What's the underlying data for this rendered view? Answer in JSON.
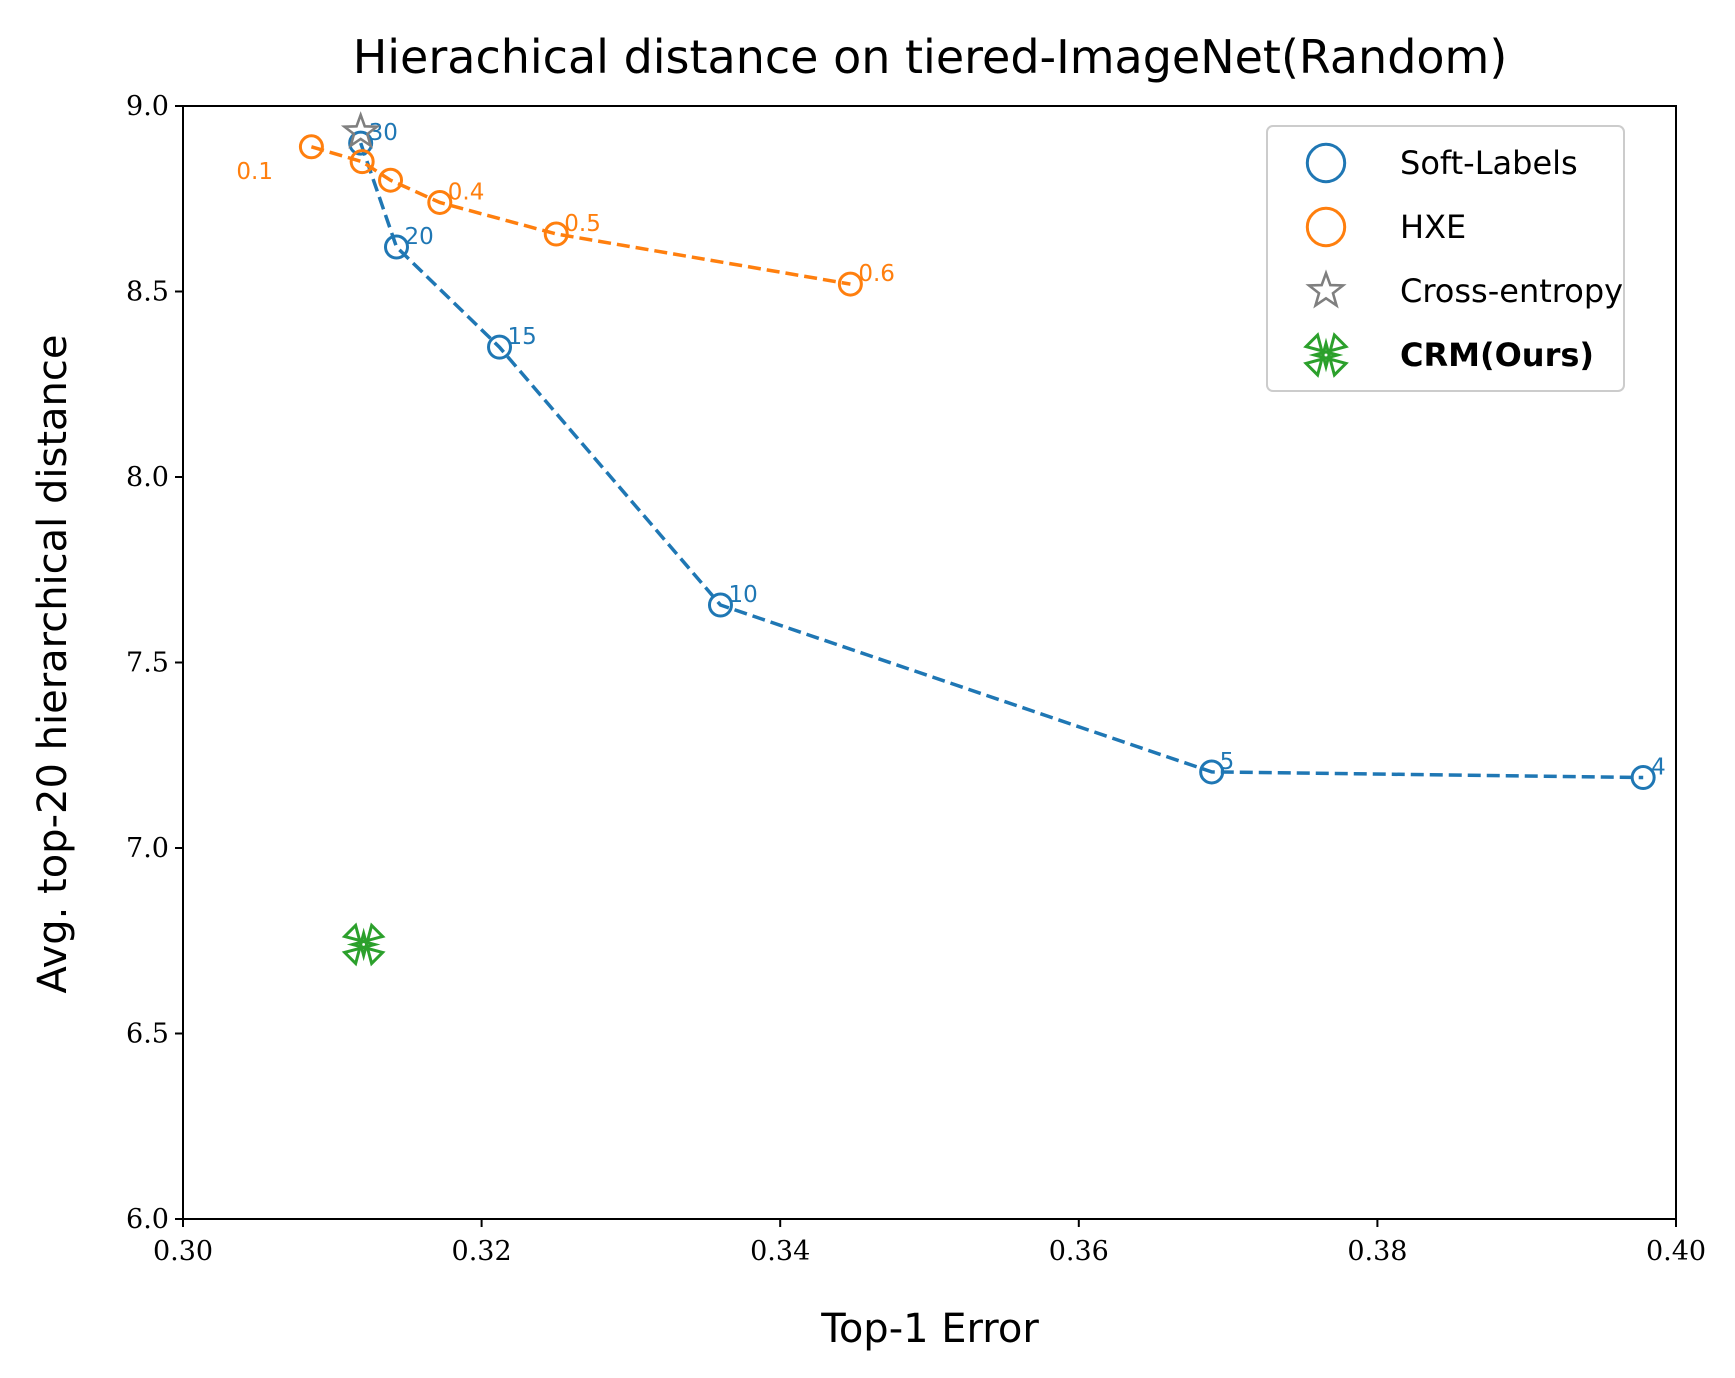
{
  "chart_data": {
    "type": "scatter",
    "title": "Hierachical distance on tiered-ImageNet(Random)",
    "xlabel": "Top-1 Error",
    "ylabel": "Avg. top-20 hierarchical distance",
    "xlim": [
      0.3,
      0.4
    ],
    "ylim": [
      6.0,
      9.0
    ],
    "xticks": [
      "0.30",
      "0.32",
      "0.34",
      "0.36",
      "0.38",
      "0.40"
    ],
    "yticks": [
      "6.0",
      "6.5",
      "7.0",
      "7.5",
      "8.0",
      "8.5",
      "9.0"
    ],
    "grid": false,
    "legend_position": "top-right",
    "series": [
      {
        "name": "Cross-entropy",
        "marker": "star",
        "line": "none",
        "color": "#7f7f7f",
        "points": [
          {
            "x": 0.3119,
            "y": 8.93,
            "label": ""
          }
        ]
      },
      {
        "name": "CRM(Ours)",
        "bold": true,
        "marker": "x-filled",
        "line": "none",
        "color": "#2ca02c",
        "points": [
          {
            "x": 0.3121,
            "y": 6.74,
            "label": ""
          }
        ]
      },
      {
        "name": "Soft-Labels",
        "marker": "circle",
        "line": "dashed",
        "color": "#1f77b4",
        "points": [
          {
            "x": 0.3119,
            "y": 8.9,
            "label": "30"
          },
          {
            "x": 0.3143,
            "y": 8.62,
            "label": "20"
          },
          {
            "x": 0.3212,
            "y": 8.35,
            "label": "15"
          },
          {
            "x": 0.336,
            "y": 7.655,
            "label": "10"
          },
          {
            "x": 0.3689,
            "y": 7.205,
            "label": "5"
          },
          {
            "x": 0.3978,
            "y": 7.19,
            "label": "4"
          }
        ]
      },
      {
        "name": "HXE",
        "marker": "circle",
        "line": "dashed",
        "color": "#ff7f0e",
        "points": [
          {
            "x": 0.3086,
            "y": 8.89,
            "label": "0.1"
          },
          {
            "x": 0.312,
            "y": 8.85,
            "label": ""
          },
          {
            "x": 0.3139,
            "y": 8.8,
            "label": ""
          },
          {
            "x": 0.3172,
            "y": 8.74,
            "label": "0.4"
          },
          {
            "x": 0.325,
            "y": 8.655,
            "label": "0.5"
          },
          {
            "x": 0.3447,
            "y": 8.52,
            "label": "0.6"
          }
        ]
      }
    ]
  }
}
